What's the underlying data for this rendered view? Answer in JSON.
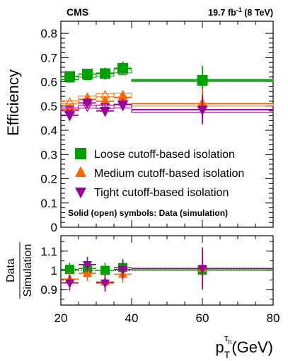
{
  "chart_data": [
    {
      "type": "scatter",
      "panel": "main",
      "experiment_label": "CMS",
      "lumi_label": "19.7 fb",
      "lumi_unit_exp": "-1",
      "lumi_energy": "(8 TeV)",
      "ylabel": "Efficiency",
      "xlim": [
        20,
        80
      ],
      "ylim": [
        0,
        0.85
      ],
      "yticks": [
        "0",
        "0.1",
        "0.2",
        "0.3",
        "0.4",
        "0.5",
        "0.6",
        "0.7",
        "0.8"
      ],
      "note": "Solid (open) symbols: Data (simulation)",
      "bins": [
        [
          20,
          25
        ],
        [
          25,
          30
        ],
        [
          30,
          35
        ],
        [
          35,
          40
        ],
        [
          40,
          80
        ]
      ],
      "series": [
        {
          "name": "Loose cutoff-based isolation",
          "color": "#00a000",
          "marker": "square",
          "data": [
            0.622,
            0.632,
            0.634,
            0.656,
            0.606
          ],
          "data_err": [
            0.022,
            0.022,
            0.025,
            0.028,
            0.06
          ],
          "simulation": [
            0.615,
            0.625,
            0.63,
            0.645,
            0.605
          ],
          "sim_err": [
            0.006,
            0.006,
            0.007,
            0.008,
            0.005
          ]
        },
        {
          "name": "Medium cutoff-based isolation",
          "color": "#ff6600",
          "marker": "triangle-up",
          "data": [
            0.487,
            0.527,
            0.52,
            0.535,
            0.51
          ],
          "data_err": [
            0.02,
            0.02,
            0.022,
            0.025,
            0.06
          ],
          "simulation": [
            0.515,
            0.535,
            0.545,
            0.545,
            0.505
          ],
          "sim_err": [
            0.006,
            0.006,
            0.007,
            0.008,
            0.005
          ]
        },
        {
          "name": "Tight cutoff-based isolation",
          "color": "#990099",
          "marker": "triangle-down",
          "data": [
            0.462,
            0.513,
            0.48,
            0.506,
            0.485
          ],
          "data_err": [
            0.018,
            0.02,
            0.022,
            0.025,
            0.06
          ],
          "simulation": [
            0.487,
            0.497,
            0.497,
            0.5,
            0.48
          ],
          "sim_err": [
            0.006,
            0.006,
            0.007,
            0.008,
            0.005
          ]
        }
      ]
    },
    {
      "type": "scatter",
      "panel": "ratio",
      "ylabel_top": "Data",
      "ylabel_bottom": "Simulation",
      "xlabel_base": "p",
      "xlabel_sub": "T",
      "xlabel_sup": "τ",
      "xlabel_supsub": "h",
      "xlabel_unit": "(GeV)",
      "xlim": [
        20,
        80
      ],
      "ylim": [
        0.82,
        1.18
      ],
      "yticks": [
        "0.9",
        "1",
        "1.1"
      ],
      "xticks": [
        "20",
        "40",
        "60",
        "80"
      ],
      "bins": [
        [
          20,
          25
        ],
        [
          25,
          30
        ],
        [
          30,
          35
        ],
        [
          35,
          40
        ],
        [
          40,
          80
        ]
      ],
      "series": [
        {
          "name": "Loose cutoff-based isolation",
          "color": "#00a000",
          "marker": "square",
          "values": [
            1.005,
            1.01,
            1.0,
            1.015,
            1.002
          ],
          "errors": [
            0.035,
            0.04,
            0.04,
            0.045,
            0.095
          ]
        },
        {
          "name": "Medium cutoff-based isolation",
          "color": "#ff6600",
          "marker": "triangle-up",
          "values": [
            0.955,
            0.985,
            0.94,
            0.98,
            1.01
          ],
          "errors": [
            0.04,
            0.04,
            0.045,
            0.045,
            0.1
          ]
        },
        {
          "name": "Tight cutoff-based isolation",
          "color": "#990099",
          "marker": "triangle-down",
          "values": [
            0.935,
            1.03,
            0.935,
            1.005,
            1.01
          ],
          "errors": [
            0.04,
            0.04,
            0.045,
            0.05,
            0.11
          ]
        }
      ]
    }
  ]
}
